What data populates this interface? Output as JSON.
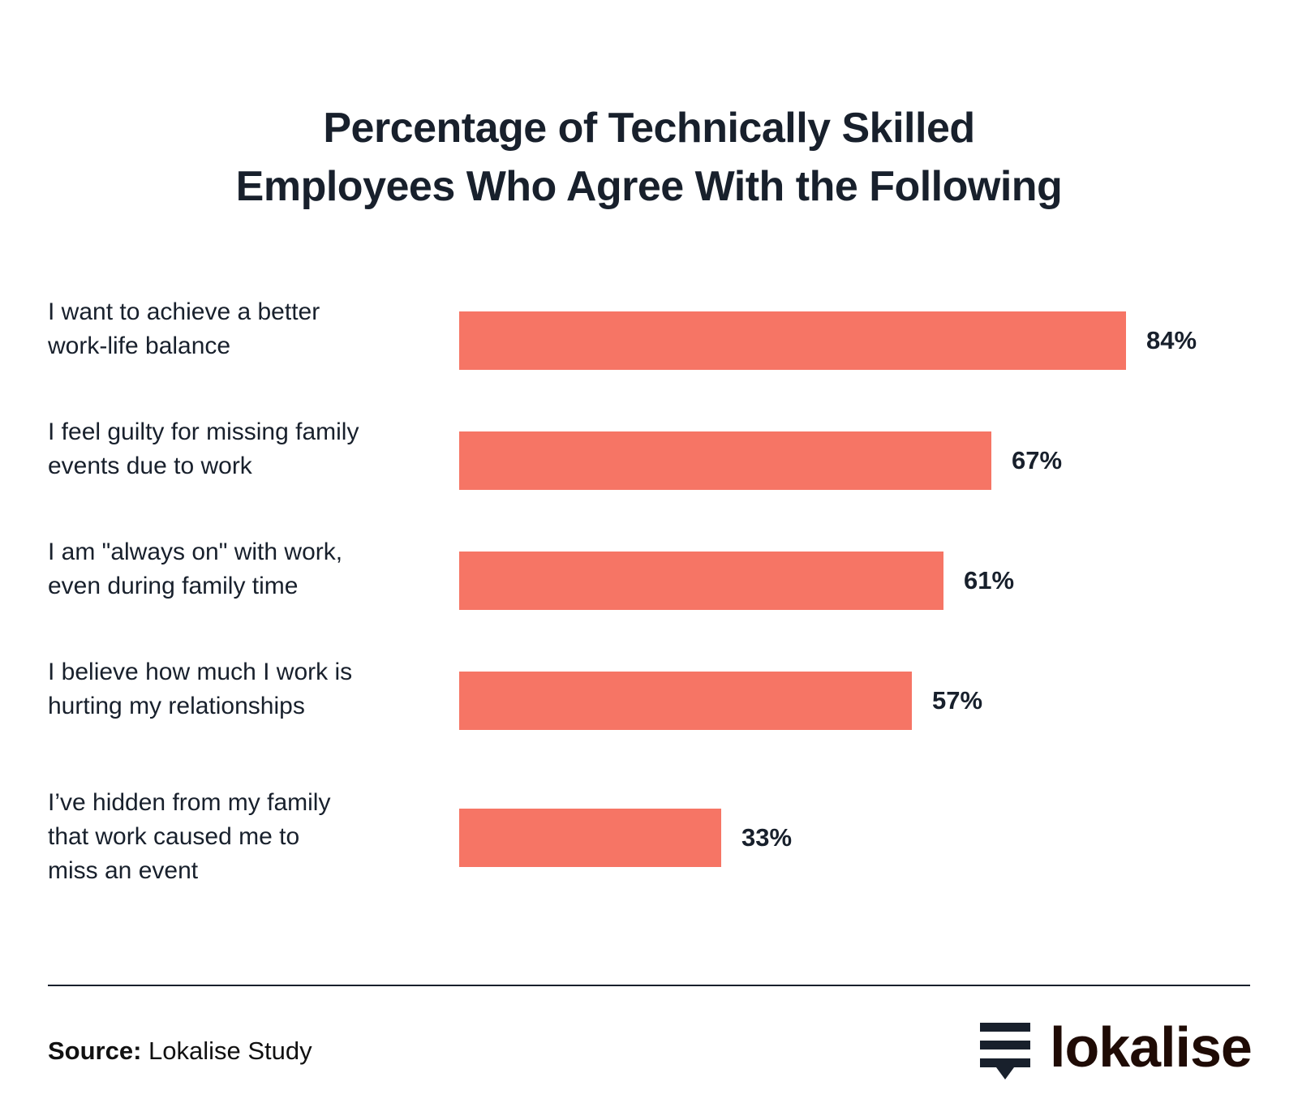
{
  "title": {
    "line1": "Percentage of Technically Skilled",
    "line2": "Employees Who Agree With the Following"
  },
  "bars": [
    {
      "label_lines": [
        "I want to achieve a better",
        "work-life balance"
      ],
      "value": 84,
      "value_label": "84%"
    },
    {
      "label_lines": [
        "I feel guilty for missing family",
        "events due to work"
      ],
      "value": 67,
      "value_label": "67%"
    },
    {
      "label_lines": [
        "I am \"always on\" with work,",
        "even during family time"
      ],
      "value": 61,
      "value_label": "61%"
    },
    {
      "label_lines": [
        "I believe how much I work is",
        "hurting my relationships"
      ],
      "value": 57,
      "value_label": "57%"
    },
    {
      "label_lines": [
        "I’ve hidden from my family",
        "that work caused me to",
        "miss an event"
      ],
      "value": 33,
      "value_label": "33%"
    }
  ],
  "footer": {
    "source_label": "Source:",
    "source_value": " Lokalise Study",
    "logo_text": "lokalise",
    "logo_icon": "lokalise-stack-icon"
  },
  "colors": {
    "bar": "#f67565",
    "text": "#18202c",
    "logo": "#1f0b05"
  },
  "chart_data": {
    "type": "bar",
    "orientation": "horizontal",
    "title": "Percentage of Technically Skilled Employees Who Agree With the Following",
    "categories": [
      "I want to achieve a better work-life balance",
      "I feel guilty for missing family events due to work",
      "I am \"always on\" with work, even during family time",
      "I believe how much I work is hurting my relationships",
      "I’ve hidden from my family that work caused me to miss an event"
    ],
    "values": [
      84,
      67,
      61,
      57,
      33
    ],
    "unit": "%",
    "xlabel": "",
    "ylabel": "",
    "grid": false,
    "legend": null,
    "source": "Lokalise Study"
  }
}
